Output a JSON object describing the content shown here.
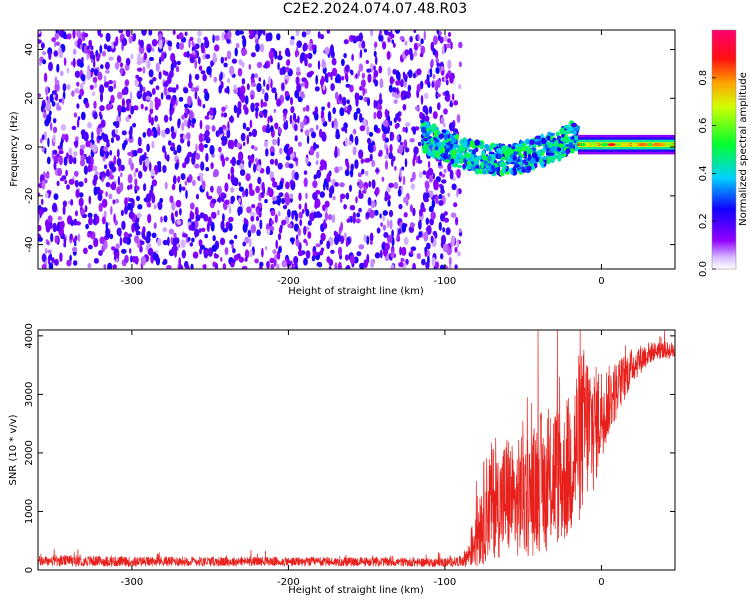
{
  "figure": {
    "title": "C2E2.2024.074.07.48.R03"
  },
  "colors": {
    "snr_line": "#e8201c",
    "axis": "#000000",
    "colormap": [
      "#ffffff",
      "#a000ff",
      "#2000ff",
      "#00c8ff",
      "#00ff40",
      "#ffff00",
      "#ff2020",
      "#ff0060"
    ]
  },
  "chart_data": [
    {
      "type": "heatmap",
      "title": "",
      "xlabel": "Height of straight line (km)",
      "ylabel": "Frequency (Hz)",
      "xlim": [
        -360,
        47
      ],
      "ylim": [
        -50,
        48
      ],
      "xticks": [
        -300,
        -200,
        -100,
        0
      ],
      "yticks": [
        -40,
        -20,
        0,
        20,
        40
      ],
      "xtick_labels": [
        "-300",
        "-200",
        "-100",
        "0"
      ],
      "ytick_labels": [
        "-40",
        "-20",
        "0",
        "20",
        "40"
      ],
      "description_regions": [
        {
          "x_range": [
            -360,
            -90
          ],
          "freq_range": [
            -50,
            48
          ],
          "amplitude": [
            0.05,
            0.25
          ],
          "pattern": "noise"
        },
        {
          "x_range": [
            -115,
            -15
          ],
          "freq_center": [
            5,
            -5
          ],
          "freq_halfwidth": 6,
          "amplitude": [
            0.2,
            0.55
          ],
          "pattern": "signal"
        },
        {
          "x_range": [
            -15,
            47
          ],
          "freq_center": 1,
          "freq_halfwidth": 2,
          "amplitude": [
            0.5,
            0.95
          ],
          "pattern": "carrier"
        }
      ],
      "colorbar": {
        "label": "Normalized spectral amplitude",
        "range": [
          0,
          1
        ],
        "ticks": [
          0.0,
          0.2,
          0.4,
          0.6,
          0.8
        ],
        "tick_labels": [
          "0.0",
          "0.2",
          "0.4",
          "0.6",
          "0.8"
        ]
      },
      "grid": false
    },
    {
      "type": "line",
      "title": "",
      "xlabel": "Height of straight line (km)",
      "ylabel": "SNR (10 * v/v)",
      "xlim": [
        -360,
        47
      ],
      "ylim": [
        0,
        4100
      ],
      "xticks": [
        -300,
        -200,
        -100,
        0
      ],
      "yticks": [
        0,
        1000,
        2000,
        3000,
        4000
      ],
      "xtick_labels": [
        "-300",
        "-200",
        "-100",
        "0"
      ],
      "ytick_labels": [
        "0",
        "1000",
        "2000",
        "3000",
        "4000"
      ],
      "series": [
        {
          "x": [
            -360,
            -340,
            -320,
            -300,
            -280,
            -260,
            -240,
            -220,
            -200,
            -180,
            -160,
            -140,
            -120,
            -100,
            -90,
            -85,
            -80,
            -75,
            -70,
            -65,
            -60,
            -55,
            -50,
            -45,
            -40,
            -35,
            -30,
            -25,
            -20,
            -15,
            -10,
            -5,
            0,
            5,
            10,
            15,
            20,
            25,
            30,
            35,
            40,
            47
          ],
          "y": [
            150,
            160,
            150,
            140,
            150,
            150,
            140,
            150,
            140,
            140,
            140,
            140,
            130,
            130,
            150,
            250,
            600,
            1000,
            1200,
            1100,
            1300,
            1100,
            1400,
            1200,
            1600,
            1300,
            1700,
            1500,
            1800,
            2200,
            2500,
            2400,
            2700,
            2900,
            3100,
            3300,
            3500,
            3600,
            3700,
            3750,
            3750,
            3750
          ],
          "spread": [
            90,
            95,
            90,
            85,
            85,
            85,
            80,
            80,
            80,
            80,
            80,
            80,
            75,
            75,
            90,
            200,
            600,
            900,
            1000,
            900,
            1100,
            900,
            1200,
            1000,
            1300,
            1000,
            1300,
            1100,
            1300,
            1500,
            1400,
            1100,
            800,
            600,
            500,
            400,
            300,
            250,
            200,
            150,
            150,
            150
          ]
        }
      ],
      "grid": false
    }
  ]
}
